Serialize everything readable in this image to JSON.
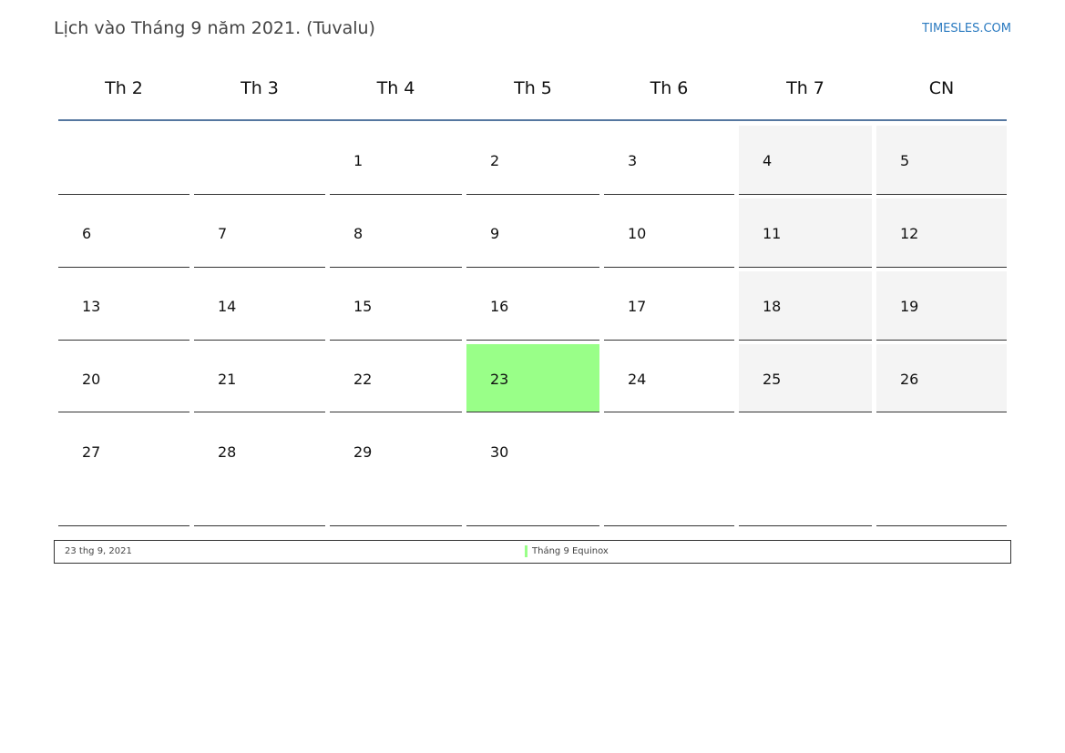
{
  "header": {
    "title": "Lịch vào Tháng 9 năm 2021. (Tuvalu)",
    "brand": "TIMESLES.COM"
  },
  "weekdays": [
    "Th 2",
    "Th 3",
    "Th 4",
    "Th 5",
    "Th 6",
    "Th 7",
    "CN"
  ],
  "weeks": [
    [
      "",
      "",
      "1",
      "2",
      "3",
      "4",
      "5"
    ],
    [
      "6",
      "7",
      "8",
      "9",
      "10",
      "11",
      "12"
    ],
    [
      "13",
      "14",
      "15",
      "16",
      "17",
      "18",
      "19"
    ],
    [
      "20",
      "21",
      "22",
      "23",
      "24",
      "25",
      "26"
    ],
    [
      "27",
      "28",
      "29",
      "30",
      "",
      "",
      ""
    ]
  ],
  "highlighted_day": "23",
  "colors": {
    "highlight": "#99ff88",
    "weekend": "#f4f4f4",
    "header_line": "#5577a0"
  },
  "legend": {
    "date": "23 thg 9, 2021",
    "event": "Tháng 9 Equinox"
  }
}
